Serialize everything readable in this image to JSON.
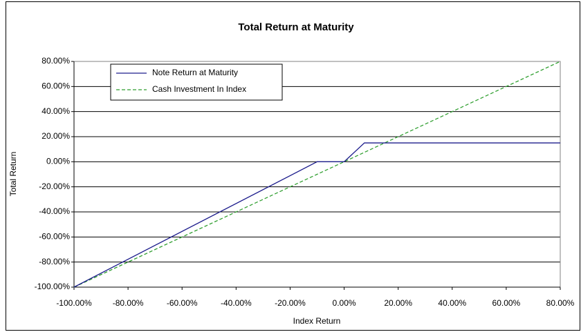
{
  "chart_data": {
    "type": "line",
    "title": "Total Return at Maturity",
    "x_label": "Index Return",
    "y_label": "Total Return",
    "x": [
      -100,
      -10,
      0,
      7.5,
      80
    ],
    "series": [
      {
        "name": "Note Return at Maturity",
        "color": "#1c1c8c",
        "dash": "solid",
        "values": [
          -100,
          0,
          0,
          15,
          15
        ]
      },
      {
        "name": "Cash Investment In Index",
        "color": "#2e9e2e",
        "dash": "dashed",
        "values": [
          -100,
          -10,
          0,
          7.5,
          80
        ]
      }
    ],
    "xlim": [
      -100,
      80
    ],
    "xticks": [
      {
        "value": -100,
        "label": "-100.00%"
      },
      {
        "value": -80,
        "label": "-80.00%"
      },
      {
        "value": -60,
        "label": "-60.00%"
      },
      {
        "value": -40,
        "label": "-40.00%"
      },
      {
        "value": -20,
        "label": "-20.00%"
      },
      {
        "value": 0,
        "label": "0.00%"
      },
      {
        "value": 20,
        "label": "20.00%"
      },
      {
        "value": 40,
        "label": "40.00%"
      },
      {
        "value": 60,
        "label": "60.00%"
      },
      {
        "value": 80,
        "label": "80.00%"
      }
    ],
    "ylim": [
      -100,
      80
    ],
    "yticks": [
      {
        "value": -100,
        "label": "-100.00%"
      },
      {
        "value": -80,
        "label": "-80.00%"
      },
      {
        "value": -60,
        "label": "-60.00%"
      },
      {
        "value": -40,
        "label": "-40.00%"
      },
      {
        "value": -20,
        "label": "-20.00%"
      },
      {
        "value": 0,
        "label": "0.00%"
      },
      {
        "value": 20,
        "label": "20.00%"
      },
      {
        "value": 40,
        "label": "40.00%"
      },
      {
        "value": 60,
        "label": "60.00%"
      },
      {
        "value": 80,
        "label": "80.00%"
      }
    ],
    "grid": true,
    "legend": "upper-left"
  }
}
